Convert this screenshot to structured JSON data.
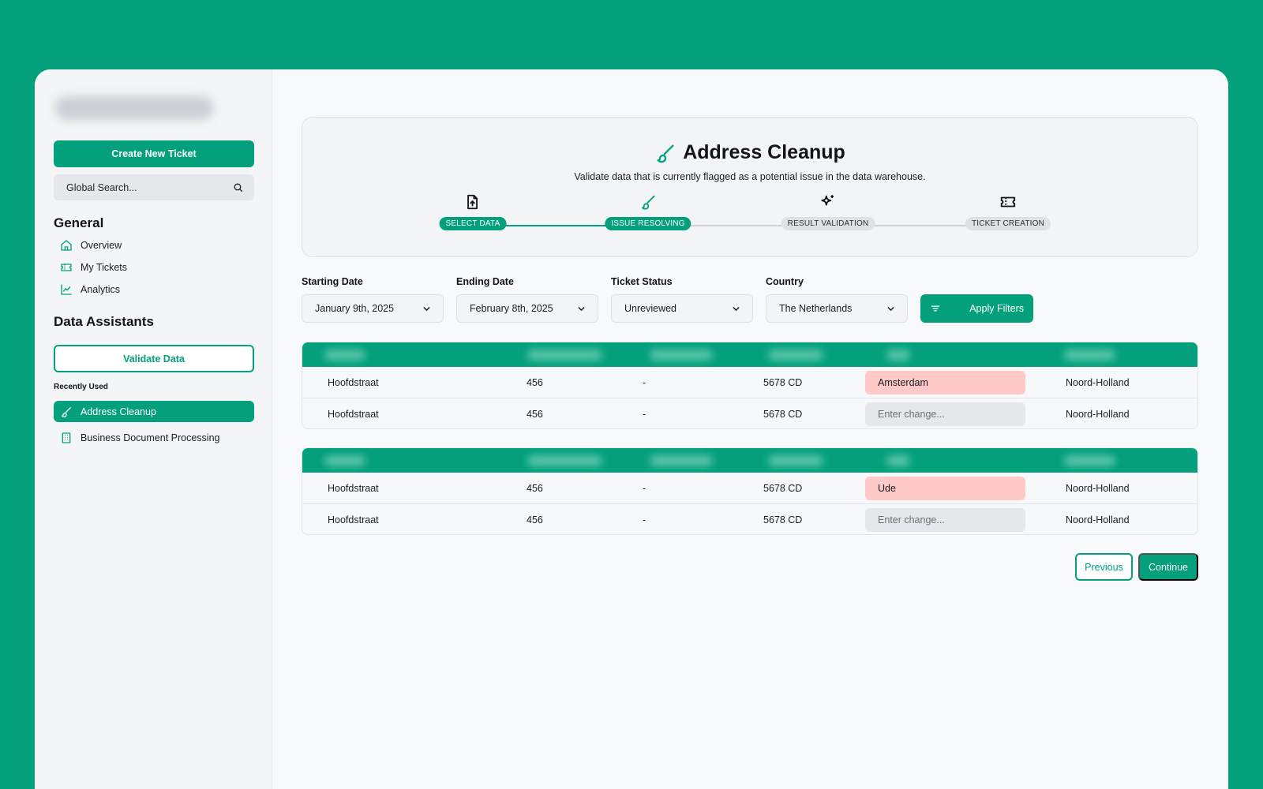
{
  "sidebar": {
    "create_ticket_label": "Create New Ticket",
    "search_placeholder": "Global Search...",
    "general_title": "General",
    "general_items": [
      {
        "label": "Overview",
        "icon": "home-icon"
      },
      {
        "label": "My Tickets",
        "icon": "ticket-icon"
      },
      {
        "label": "Analytics",
        "icon": "chart-icon"
      }
    ],
    "assistants_title": "Data Assistants",
    "validate_label": "Validate Data",
    "recent_label": "Recently Used",
    "recent_items": [
      {
        "label": "Address Cleanup",
        "icon": "brush-icon",
        "active": true
      },
      {
        "label": "Business Document Processing",
        "icon": "building-icon",
        "active": false
      }
    ]
  },
  "hero": {
    "title": "Address Cleanup",
    "subtitle": "Validate data that is currently flagged as a potential issue in the data warehouse.",
    "steps": [
      {
        "label": "SELECT DATA",
        "icon": "file-upload-icon",
        "state": "done"
      },
      {
        "label": "ISSUE RESOLVING",
        "icon": "brush-icon",
        "state": "current"
      },
      {
        "label": "RESULT VALIDATION",
        "icon": "sparkle-icon",
        "state": "pending"
      },
      {
        "label": "TICKET CREATION",
        "icon": "ticket-icon",
        "state": "pending"
      }
    ]
  },
  "filters": {
    "starting_date": {
      "label": "Starting Date",
      "value": "January 9th, 2025"
    },
    "ending_date": {
      "label": "Ending Date",
      "value": "February 8th, 2025"
    },
    "ticket_status": {
      "label": "Ticket Status",
      "value": "Unreviewed"
    },
    "country": {
      "label": "Country",
      "value": "The Netherlands"
    },
    "apply_label": "Apply Filters"
  },
  "tables": [
    {
      "rows": [
        {
          "street": "Hoofdstraat",
          "number": "456",
          "addition": "-",
          "postcode": "5678 CD",
          "city": "Amsterdam",
          "province": "Noord-Holland"
        },
        {
          "street": "Hoofdstraat",
          "number": "456",
          "addition": "-",
          "postcode": "5678 CD",
          "change_placeholder": "Enter change...",
          "province": "Noord-Holland"
        }
      ]
    },
    {
      "rows": [
        {
          "street": "Hoofdstraat",
          "number": "456",
          "addition": "-",
          "postcode": "5678 CD",
          "city": "Ude",
          "province": "Noord-Holland"
        },
        {
          "street": "Hoofdstraat",
          "number": "456",
          "addition": "-",
          "postcode": "5678 CD",
          "change_placeholder": "Enter change...",
          "province": "Noord-Holland"
        }
      ]
    }
  ],
  "nav": {
    "previous_label": "Previous",
    "continue_label": "Continue"
  },
  "colors": {
    "accent": "#03a07b",
    "flag": "#ffc9c7",
    "pending": "#dfe2e5"
  }
}
